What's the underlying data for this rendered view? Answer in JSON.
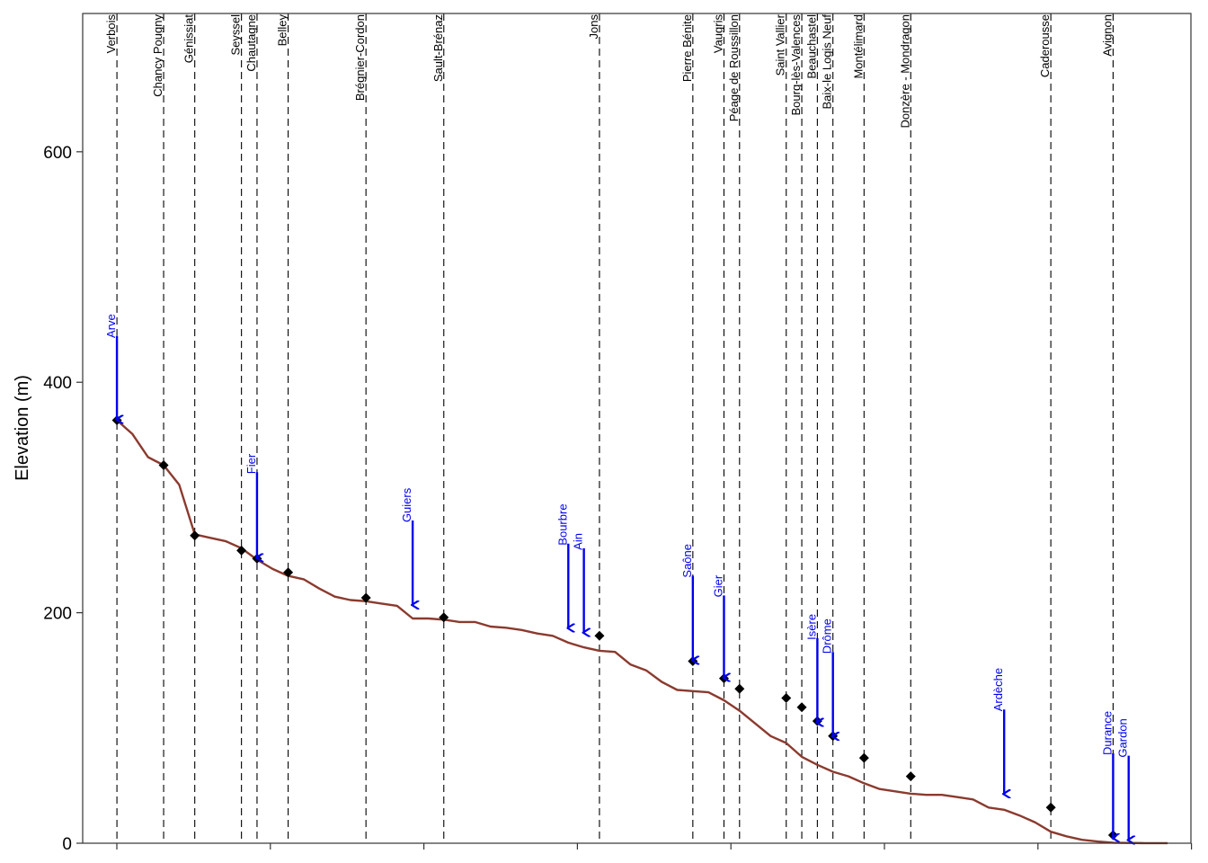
{
  "chart_data": {
    "type": "line",
    "title": "",
    "xlabel": "",
    "ylabel": "Elevation (m)",
    "ylim": [
      0,
      720
    ],
    "xlim": [
      -22,
      690
    ],
    "yticks": [
      0,
      200,
      400,
      600
    ],
    "xtick_count": 8,
    "grid": false,
    "colors": {
      "profile": "#8B3A2E",
      "tributary": "#0000EE",
      "station_line": "#000000",
      "station_marker": "#000000",
      "axis": "#333333"
    },
    "profile": {
      "x": [
        0,
        10,
        20,
        30,
        40,
        50,
        60,
        70,
        80,
        90,
        100,
        110,
        120,
        130,
        140,
        150,
        160,
        170,
        180,
        190,
        200,
        210,
        220,
        230,
        240,
        250,
        260,
        270,
        280,
        290,
        300,
        310,
        320,
        330,
        340,
        350,
        360,
        370,
        380,
        390,
        400,
        410,
        420,
        430,
        440,
        450,
        460,
        470,
        480,
        490,
        500,
        510,
        520,
        530,
        540,
        550,
        560,
        570,
        580,
        590,
        600,
        610,
        620,
        630,
        640,
        650,
        660,
        665,
        670,
        675
      ],
      "y": [
        367,
        355,
        335,
        328,
        311,
        268,
        265,
        262,
        256,
        246,
        238,
        232,
        229,
        221,
        214,
        211,
        210,
        208,
        206,
        195,
        195,
        194,
        192,
        192,
        188,
        187,
        185,
        182,
        180,
        174,
        170,
        167,
        166,
        155,
        150,
        140,
        133,
        132,
        131,
        124,
        115,
        104,
        93,
        87,
        75,
        68,
        62,
        58,
        52,
        47,
        45,
        43,
        42,
        42,
        40,
        38,
        31,
        29,
        24,
        18,
        10,
        6,
        3,
        1.5,
        0.5,
        0.2,
        0.1,
        0.1,
        0.1,
        0.1
      ]
    },
    "stations": [
      {
        "name": "Verbois",
        "x": 0,
        "y": 367
      },
      {
        "name": "Chancy Pougny",
        "x": 30,
        "y": 328
      },
      {
        "name": "Génissiat",
        "x": 50,
        "y": 267
      },
      {
        "name": "Seyssel",
        "x": 80,
        "y": 254
      },
      {
        "name": "Chautagne",
        "x": 90,
        "y": 247
      },
      {
        "name": "Belley",
        "x": 110,
        "y": 235
      },
      {
        "name": "Brégnier-Cordon",
        "x": 160,
        "y": 213
      },
      {
        "name": "Sault-Brénaz",
        "x": 210,
        "y": 196
      },
      {
        "name": "Jons",
        "x": 310,
        "y": 180
      },
      {
        "name": "Pierre Bénite",
        "x": 370,
        "y": 158
      },
      {
        "name": "Vaugris",
        "x": 390,
        "y": 143
      },
      {
        "name": "Péage de Roussillon",
        "x": 400,
        "y": 134
      },
      {
        "name": "Saint Vallier",
        "x": 430,
        "y": 126
      },
      {
        "name": "Bourg-lès-Valences",
        "x": 440,
        "y": 118
      },
      {
        "name": "Beauchastel",
        "x": 450,
        "y": 106
      },
      {
        "name": "Baix-le Logis Neuf",
        "x": 460,
        "y": 93
      },
      {
        "name": "Montélimard",
        "x": 480,
        "y": 74
      },
      {
        "name": "Donzère - Mondragon",
        "x": 510,
        "y": 58
      },
      {
        "name": "Caderousse",
        "x": 600,
        "y": 31
      },
      {
        "name": "Avignon",
        "x": 640,
        "y": 7
      }
    ],
    "tributaries": [
      {
        "name": "Arve",
        "x": 0,
        "y_start": 440,
        "y_end": 367
      },
      {
        "name": "Fier",
        "x": 90,
        "y_start": 322,
        "y_end": 247
      },
      {
        "name": "Guiers",
        "x": 190,
        "y_start": 280,
        "y_end": 206
      },
      {
        "name": "Bourbre",
        "x": 290,
        "y_start": 260,
        "y_end": 186
      },
      {
        "name": "Ain",
        "x": 300,
        "y_start": 256,
        "y_end": 182
      },
      {
        "name": "Saône",
        "x": 370,
        "y_start": 232,
        "y_end": 158
      },
      {
        "name": "Gier",
        "x": 390,
        "y_start": 215,
        "y_end": 143
      },
      {
        "name": "Isère",
        "x": 450,
        "y_start": 178,
        "y_end": 104
      },
      {
        "name": "Drôme",
        "x": 460,
        "y_start": 166,
        "y_end": 92
      },
      {
        "name": "Ardèche",
        "x": 570,
        "y_start": 116,
        "y_end": 42
      },
      {
        "name": "Durance",
        "x": 640,
        "y_start": 78,
        "y_end": 4
      },
      {
        "name": "Gardon",
        "x": 650,
        "y_start": 76,
        "y_end": 2
      }
    ]
  }
}
